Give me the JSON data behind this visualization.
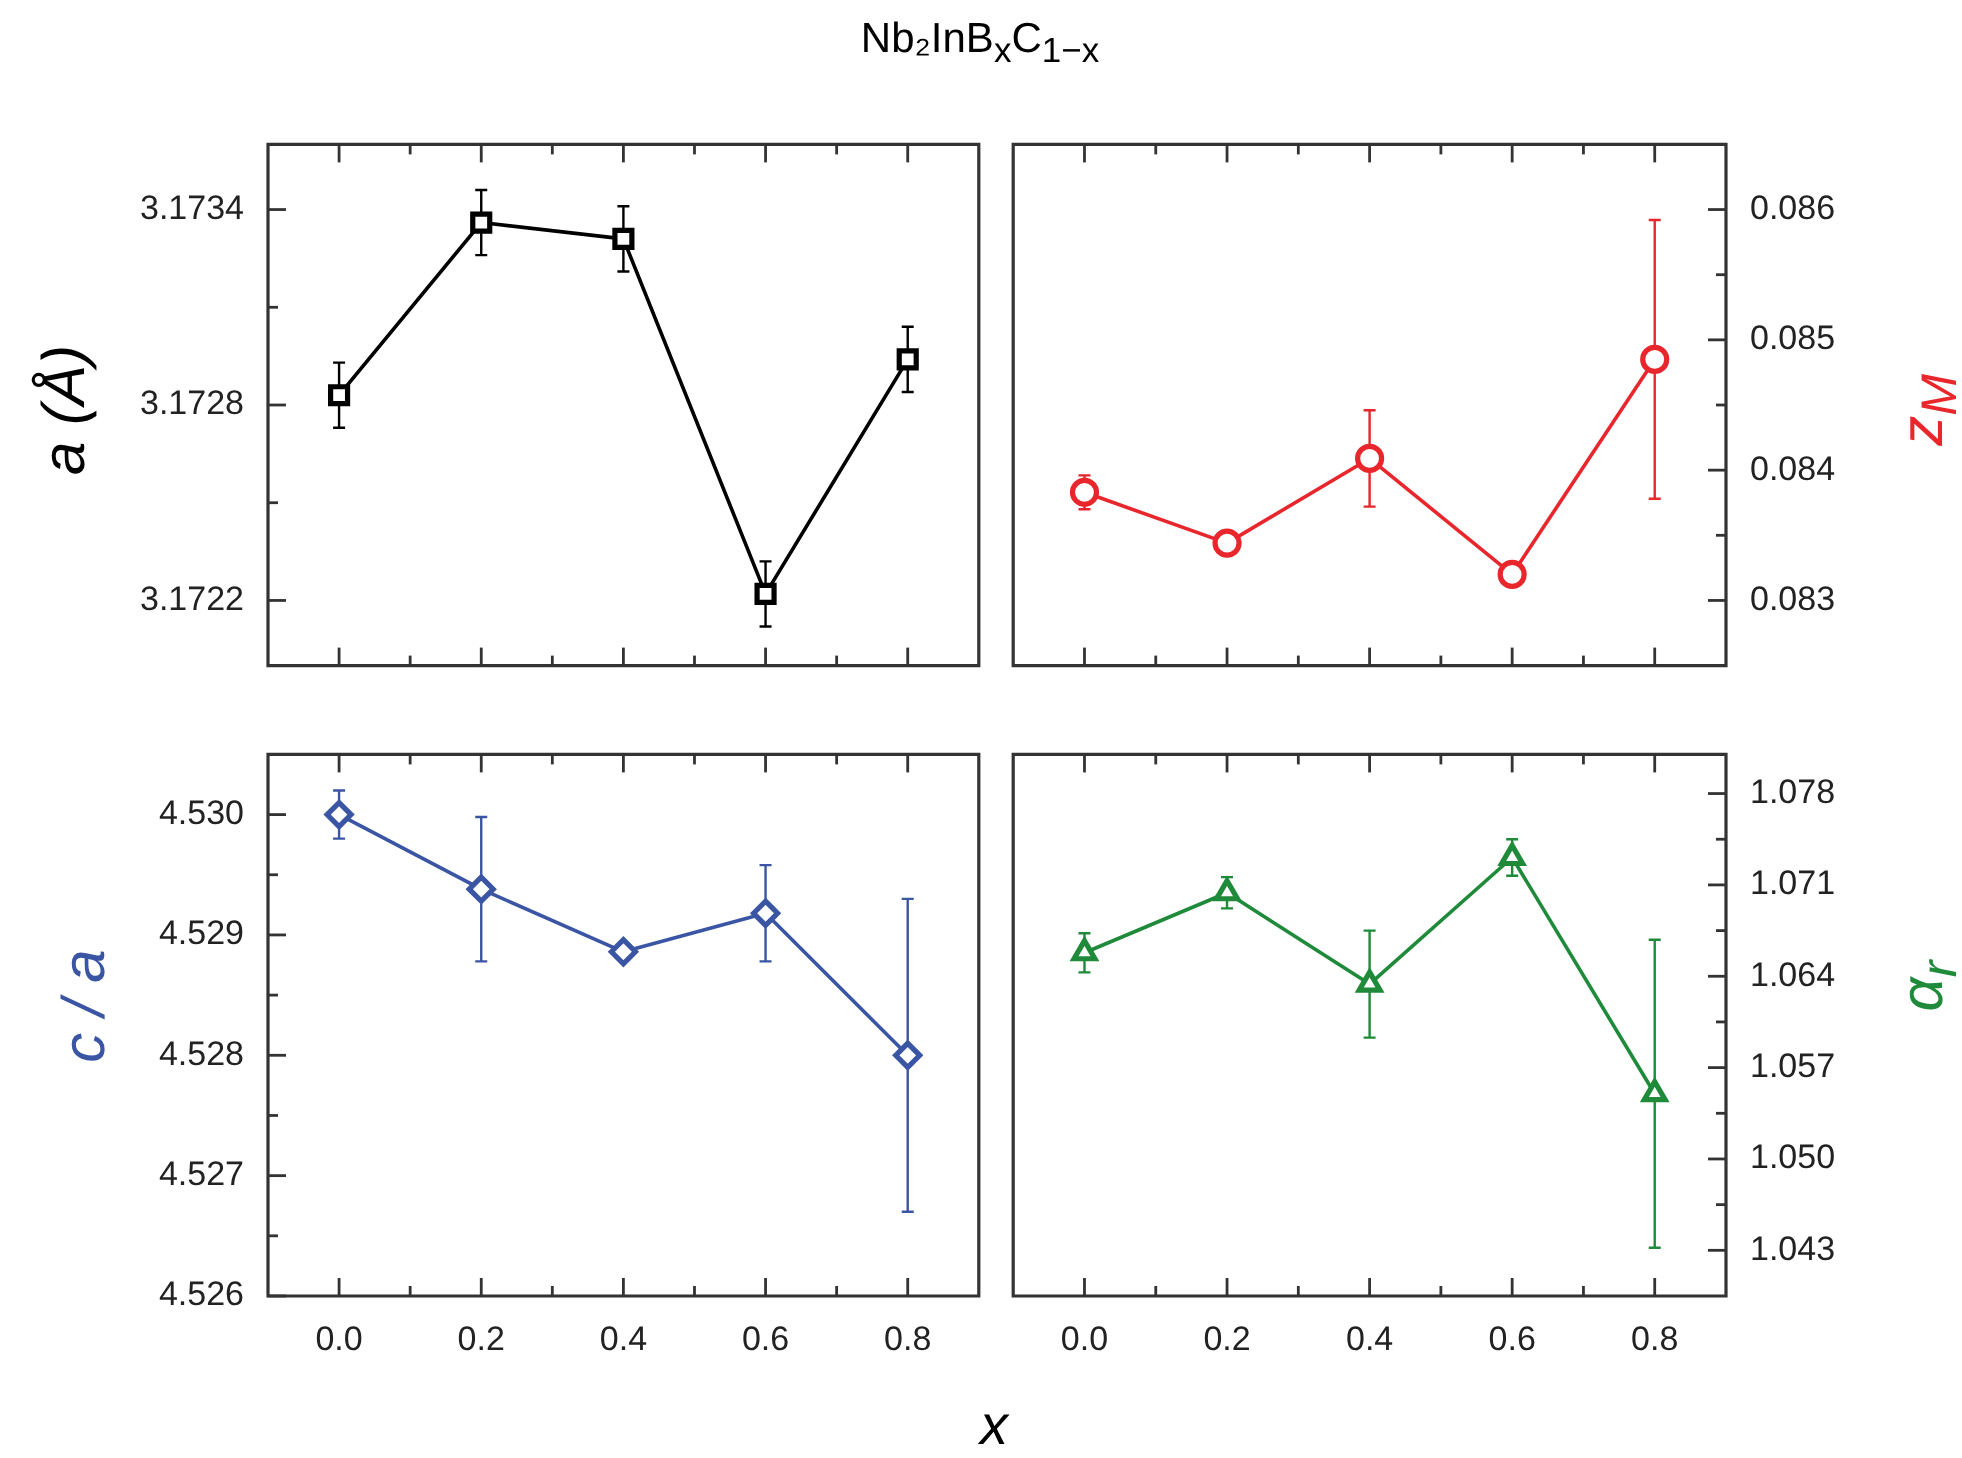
{
  "chart_data": [
    {
      "type": "line",
      "title": "Nb₂InB$_{x}$C$_{1−x}$",
      "ylabel": "a (Å)",
      "tick_labels": "y",
      "marker": "square",
      "x": [
        0,
        0.2,
        0.4,
        0.6,
        0.8
      ],
      "xlim": [
        -0.1,
        0.9
      ],
      "xticks": [
        0,
        {
          "value": 0.1,
          "label": null
        },
        0.2,
        {
          "value": 0.3,
          "label": null
        },
        0.4,
        {
          "value": 0.5,
          "label": null
        },
        0.6,
        {
          "value": 0.7,
          "label": null
        },
        0.8
      ],
      "ylim": [
        3.172,
        3.1736
      ],
      "yticks": [
        3.1722,
        {
          "value": 3.1725,
          "label": null
        },
        3.1728,
        {
          "value": 3.1731,
          "label": null
        },
        3.1734
      ],
      "series": [
        {
          "color": "#000000",
          "values": [
            3.17283,
            3.17336,
            3.17331,
            3.17222,
            3.17294
          ],
          "errors": [
            0.0001,
            0.0001,
            0.0001,
            0.0001,
            0.0001
          ]
        }
      ]
    },
    {
      "type": "line",
      "ylabel": "z$_{M}$",
      "tick_labels": "y",
      "marker": "circle",
      "x": [
        0,
        0.2,
        0.4,
        0.6,
        0.8
      ],
      "xlim": [
        -0.1,
        0.9
      ],
      "xticks": [
        0,
        {
          "value": 0.1,
          "label": null
        },
        0.2,
        {
          "value": 0.3,
          "label": null
        },
        0.4,
        {
          "value": 0.5,
          "label": null
        },
        0.6,
        {
          "value": 0.7,
          "label": null
        },
        0.8
      ],
      "ylim": [
        0.0825,
        0.0865
      ],
      "yticks": [
        0.083,
        {
          "value": 0.0835,
          "label": null
        },
        0.084,
        {
          "value": 0.0845,
          "label": null
        },
        0.085,
        {
          "value": 0.0855,
          "label": null
        },
        0.086
      ],
      "series": [
        {
          "color": "#e8262c",
          "values": [
            0.08383,
            0.08344,
            0.08409,
            0.0832,
            0.08485
          ],
          "errors": [
            0.00013,
            null,
            0.00037,
            null,
            0.00107
          ]
        }
      ]
    },
    {
      "type": "line",
      "ylabel": "c / a",
      "xlabel": "x",
      "marker": "diamond",
      "x": [
        0,
        0.2,
        0.4,
        0.6,
        0.8
      ],
      "xlim": [
        -0.1,
        0.9
      ],
      "xticks": [
        {
          "value": 0,
          "label": "0.0"
        },
        {
          "value": 0.1,
          "label": null
        },
        {
          "value": 0.2,
          "label": "0.2"
        },
        {
          "value": 0.3,
          "label": null
        },
        {
          "value": 0.4,
          "label": "0.4"
        },
        {
          "value": 0.5,
          "label": null
        },
        {
          "value": 0.6,
          "label": "0.6"
        },
        {
          "value": 0.7,
          "label": null
        },
        {
          "value": 0.8,
          "label": "0.8"
        }
      ],
      "ylim": [
        4.526,
        4.5305
      ],
      "yticks": [
        4.526,
        {
          "value": 4.5265,
          "label": null
        },
        4.527,
        {
          "value": 4.5275,
          "label": null
        },
        4.528,
        {
          "value": 4.5285,
          "label": null
        },
        4.529,
        {
          "value": 4.5295,
          "label": null
        },
        {
          "value": 4.53,
          "label": "4.530"
        }
      ],
      "series": [
        {
          "color": "#3b55a5",
          "values": [
            4.53,
            4.52938,
            4.52886,
            4.52918,
            4.528
          ],
          "errors": [
            0.0002,
            0.0006,
            null,
            0.0004,
            0.0013
          ]
        }
      ]
    },
    {
      "type": "line",
      "ylabel": "α$_{r}$",
      "marker": "triangle",
      "x": [
        0,
        0.2,
        0.4,
        0.6,
        0.8
      ],
      "xlim": [
        -0.1,
        0.9
      ],
      "xticks": [
        {
          "value": 0,
          "label": "0.0"
        },
        {
          "value": 0.1,
          "label": null
        },
        {
          "value": 0.2,
          "label": "0.2"
        },
        {
          "value": 0.3,
          "label": null
        },
        {
          "value": 0.4,
          "label": "0.4"
        },
        {
          "value": 0.5,
          "label": null
        },
        {
          "value": 0.6,
          "label": "0.6"
        },
        {
          "value": 0.7,
          "label": null
        },
        {
          "value": 0.8,
          "label": "0.8"
        }
      ],
      "ylim": [
        1.0395,
        1.081
      ],
      "yticks": [
        1.043,
        {
          "value": 1.0465,
          "label": null
        },
        {
          "value": 1.05,
          "label": "1.050"
        },
        {
          "value": 1.0535,
          "label": null
        },
        1.057,
        {
          "value": 1.0605,
          "label": null
        },
        1.064,
        {
          "value": 1.0675,
          "label": null
        },
        1.071,
        {
          "value": 1.0745,
          "label": null
        },
        1.078
      ],
      "series": [
        {
          "color": "#1e8a3a",
          "values": [
            1.0658,
            1.0704,
            1.0634,
            1.0731,
            1.055
          ],
          "errors": [
            0.0015,
            0.0012,
            0.0041,
            0.0014,
            0.0118
          ]
        }
      ]
    }
  ]
}
